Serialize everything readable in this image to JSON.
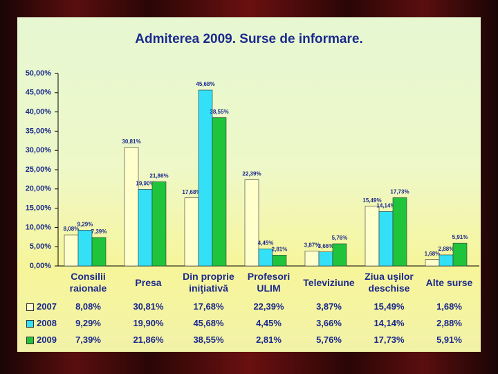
{
  "chart_data": {
    "type": "bar",
    "title": "Admiterea 2009. Surse de informare.",
    "categories": [
      "Consilii raionale",
      "Presa",
      "Din proprie iniţiativă",
      "Profesori ULIM",
      "Televiziune",
      "Ziua uşilor deschise",
      "Alte surse"
    ],
    "series": [
      {
        "name": "2007",
        "color": "#ffffcc",
        "values": [
          8.08,
          30.81,
          17.68,
          22.39,
          3.87,
          15.49,
          1.68
        ],
        "value_labels": [
          "8,08%",
          "30,81%",
          "17,68%",
          "22,39%",
          "3,87%",
          "15,49%",
          "1,68%"
        ]
      },
      {
        "name": "2008",
        "color": "#33e0f5",
        "values": [
          9.29,
          19.9,
          45.68,
          4.45,
          3.66,
          14.14,
          2.88
        ],
        "value_labels": [
          "9,29%",
          "19,90%",
          "45,68%",
          "4,45%",
          "3,66%",
          "14,14%",
          "2,88%"
        ]
      },
      {
        "name": "2009",
        "color": "#1fc43a",
        "values": [
          7.39,
          21.86,
          38.55,
          2.81,
          5.76,
          17.73,
          5.91
        ],
        "value_labels": [
          "7,39%",
          "21,86%",
          "38,55%",
          "2,81%",
          "5,76%",
          "17,73%",
          "5,91%"
        ]
      }
    ],
    "ylim": [
      0,
      50
    ],
    "yticks": [
      {
        "value": 0,
        "label": "0,00%"
      },
      {
        "value": 5,
        "label": "5,00%"
      },
      {
        "value": 10,
        "label": "10,00%"
      },
      {
        "value": 15,
        "label": "15,00%"
      },
      {
        "value": 20,
        "label": "20,00%"
      },
      {
        "value": 25,
        "label": "25,00%"
      },
      {
        "value": 30,
        "label": "30,00%"
      },
      {
        "value": 35,
        "label": "35,00%"
      },
      {
        "value": 40,
        "label": "40,00%"
      },
      {
        "value": 45,
        "label": "45,00%"
      },
      {
        "value": 50,
        "label": "50,00%"
      }
    ],
    "grid": false
  }
}
